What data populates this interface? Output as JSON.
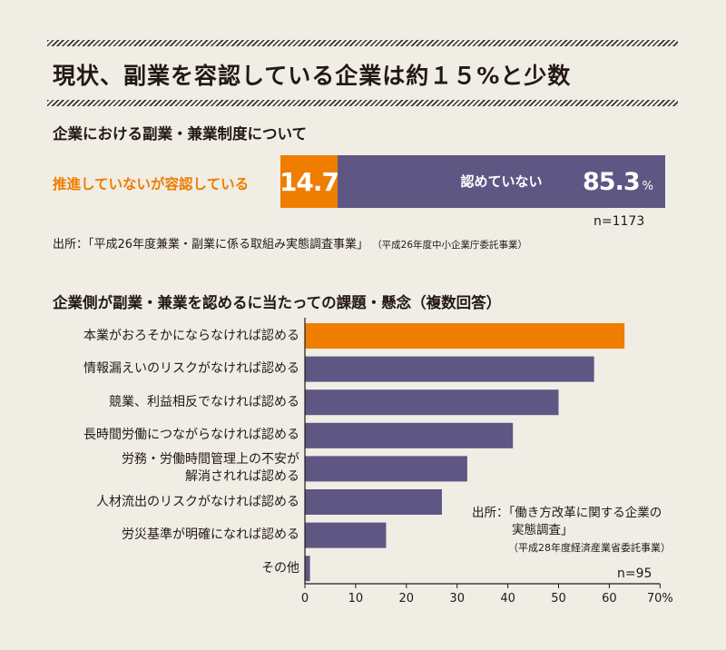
{
  "title": "現状、副業を容認している企業は約１５%と少数",
  "section1": {
    "heading": "企業における副業・兼業制度について",
    "stack_label": "推進していないが容認している",
    "seg_a_value": "14.7",
    "seg_b_label": "認めていない",
    "seg_b_value": "85.3",
    "seg_b_unit": "%",
    "n": "n=1173",
    "source": "出所：「平成26年度兼業・副業に係る取組み実態調査事業」",
    "source_note": "（平成26年度中小企業庁委託事業）"
  },
  "section2": {
    "heading": "企業側が副業・兼業を認めるに当たっての課題・懸念（複数回答）",
    "source_line1": "出所：「働き方改革に関する企業の",
    "source_line2": "実態調査」",
    "source_line3": "（平成28年度経済産業省委託事業）",
    "n": "n=95"
  },
  "chart_data": [
    {
      "type": "bar",
      "orientation": "horizontal-stacked",
      "categories": [
        "推進していないが容認している",
        "認めていない"
      ],
      "values": [
        14.7,
        85.3
      ],
      "unit": "%",
      "colors": [
        "#ee7d00",
        "#5e5683"
      ]
    },
    {
      "type": "bar",
      "orientation": "horizontal",
      "categories": [
        "本業がおろそかにならなければ認める",
        "情報漏えいのリスクがなければ認める",
        "競業、利益相反でなければ認める",
        "長時間労働につながらなければ認める",
        "労務・労働時間管理上の不安が|解消されれば認める",
        "人材流出のリスクがなければ認める",
        "労災基準が明確になれば認める",
        "その他"
      ],
      "values": [
        63,
        57,
        50,
        41,
        32,
        27,
        16,
        1
      ],
      "highlight_index": 0,
      "xlim": [
        0,
        70
      ],
      "xticks": [
        "0",
        "10",
        "20",
        "30",
        "40",
        "50",
        "60",
        "70"
      ],
      "xunit": "%",
      "colors": {
        "highlight": "#ee7d00",
        "default": "#5e5683",
        "axis": "#231815"
      }
    }
  ]
}
